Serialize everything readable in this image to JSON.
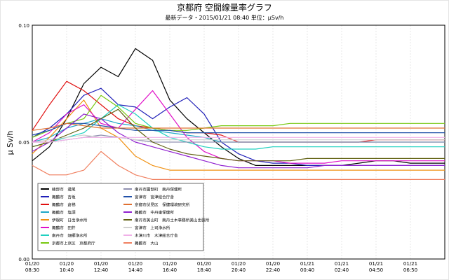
{
  "chart_data": {
    "type": "line",
    "title": "京都府 空間線量率グラフ",
    "subtitle": "最新データ・2015/01/21 08:40  単位：μSv/h",
    "ylabel": "μ Sv/h",
    "ylim": [
      0,
      0.1
    ],
    "yticks": [
      "0.00",
      "0.05",
      "0.10"
    ],
    "xticks": [
      {
        "date": "01/20",
        "time": "08:30"
      },
      {
        "date": "01/20",
        "time": "10:40"
      },
      {
        "date": "01/20",
        "time": "12:40"
      },
      {
        "date": "01/20",
        "time": "14:40"
      },
      {
        "date": "01/20",
        "time": "16:40"
      },
      {
        "date": "01/20",
        "time": "18:40"
      },
      {
        "date": "01/20",
        "time": "20:40"
      },
      {
        "date": "01/20",
        "time": "22:40"
      },
      {
        "date": "01/21",
        "time": "00:40"
      },
      {
        "date": "01/21",
        "time": "02:40"
      },
      {
        "date": "01/21",
        "time": "04:50"
      },
      {
        "date": "01/21",
        "time": "06:50"
      }
    ],
    "grid": true,
    "legend_position": "bottom-left",
    "series": [
      {
        "name": "綾部市　君尾",
        "color": "#000000",
        "values": [
          0.042,
          0.048,
          0.06,
          0.075,
          0.082,
          0.078,
          0.09,
          0.085,
          0.068,
          0.06,
          0.054,
          0.048,
          0.043,
          0.04,
          0.04,
          0.04,
          0.04,
          0.04,
          0.04,
          0.041,
          0.042,
          0.042,
          0.041,
          0.041,
          0.041
        ]
      },
      {
        "name": "舞鶴市　吉坂",
        "color": "#1f1fb8",
        "values": [
          0.052,
          0.056,
          0.062,
          0.07,
          0.073,
          0.066,
          0.065,
          0.06,
          0.065,
          0.069,
          0.062,
          0.05,
          0.045,
          0.042,
          0.041,
          0.041,
          0.04,
          0.04,
          0.04,
          0.04,
          0.04,
          0.04,
          0.04,
          0.04,
          0.04
        ]
      },
      {
        "name": "舞鶴市　倉梯",
        "color": "#e01010",
        "values": [
          0.055,
          0.066,
          0.076,
          0.072,
          0.066,
          0.06,
          0.057,
          0.056,
          0.055,
          0.054,
          0.054,
          0.053,
          0.05,
          0.05,
          0.05,
          0.05,
          0.05,
          0.05,
          0.05,
          0.05,
          0.051,
          0.051,
          0.051,
          0.051,
          0.051
        ]
      },
      {
        "name": "舞鶴市　塩須",
        "color": "#1fa8c8",
        "values": [
          0.05,
          0.052,
          0.056,
          0.058,
          0.06,
          0.058,
          0.057,
          0.055,
          0.054,
          0.053,
          0.052,
          0.05,
          0.05,
          0.05,
          0.05,
          0.05,
          0.05,
          0.05,
          0.05,
          0.05,
          0.05,
          0.05,
          0.05,
          0.05,
          0.05
        ]
      },
      {
        "name": "伊根町　日出浄水所",
        "color": "#f09010",
        "values": [
          0.045,
          0.052,
          0.06,
          0.068,
          0.056,
          0.052,
          0.044,
          0.04,
          0.038,
          0.038,
          0.038,
          0.038,
          0.038,
          0.038,
          0.038,
          0.038,
          0.038,
          0.038,
          0.038,
          0.038,
          0.038,
          0.038,
          0.038,
          0.038,
          0.038
        ]
      },
      {
        "name": "舞鶴市　田井",
        "color": "#e010c8",
        "values": [
          0.05,
          0.054,
          0.062,
          0.066,
          0.058,
          0.056,
          0.064,
          0.072,
          0.062,
          0.052,
          0.046,
          0.043,
          0.042,
          0.042,
          0.042,
          0.041,
          0.041,
          0.041,
          0.042,
          0.042,
          0.042,
          0.042,
          0.042,
          0.042,
          0.042
        ]
      },
      {
        "name": "南丹市　畑郷浄水所",
        "color": "#20d0c0",
        "values": [
          0.048,
          0.05,
          0.052,
          0.054,
          0.06,
          0.066,
          0.062,
          0.056,
          0.052,
          0.05,
          0.048,
          0.047,
          0.047,
          0.047,
          0.048,
          0.048,
          0.048,
          0.048,
          0.048,
          0.048,
          0.048,
          0.048,
          0.048,
          0.048,
          0.048
        ]
      },
      {
        "name": "京都市上京区　京都府庁",
        "color": "#78c810",
        "values": [
          0.052,
          0.055,
          0.058,
          0.06,
          0.07,
          0.065,
          0.058,
          0.056,
          0.055,
          0.055,
          0.056,
          0.057,
          0.057,
          0.057,
          0.057,
          0.058,
          0.058,
          0.058,
          0.058,
          0.058,
          0.058,
          0.058,
          0.058,
          0.058,
          0.058
        ]
      },
      {
        "name": "南丹市園部町　南丹保健所",
        "color": "#9090b0",
        "values": [
          0.05,
          0.05,
          0.051,
          0.052,
          0.053,
          0.052,
          0.051,
          0.05,
          0.05,
          0.05,
          0.05,
          0.05,
          0.05,
          0.05,
          0.05,
          0.05,
          0.05,
          0.05,
          0.05,
          0.05,
          0.05,
          0.05,
          0.05,
          0.05,
          0.05
        ]
      },
      {
        "name": "宮津市　宮津総合庁舎",
        "color": "#2050a8",
        "values": [
          0.053,
          0.055,
          0.058,
          0.058,
          0.057,
          0.056,
          0.055,
          0.055,
          0.055,
          0.054,
          0.054,
          0.054,
          0.054,
          0.054,
          0.054,
          0.054,
          0.054,
          0.054,
          0.054,
          0.054,
          0.054,
          0.054,
          0.054,
          0.054,
          0.054
        ]
      },
      {
        "name": "京都市伏見区　保健環境研究所",
        "color": "#e07030",
        "values": [
          0.055,
          0.056,
          0.058,
          0.057,
          0.056,
          0.056,
          0.056,
          0.056,
          0.056,
          0.056,
          0.056,
          0.056,
          0.056,
          0.056,
          0.056,
          0.056,
          0.056,
          0.056,
          0.056,
          0.056,
          0.056,
          0.056,
          0.056,
          0.056,
          0.056
        ]
      },
      {
        "name": "舞鶴市　中丹東保健所",
        "color": "#9020d0",
        "values": [
          0.046,
          0.05,
          0.056,
          0.062,
          0.06,
          0.054,
          0.05,
          0.048,
          0.046,
          0.044,
          0.042,
          0.04,
          0.039,
          0.039,
          0.039,
          0.039,
          0.039,
          0.04,
          0.04,
          0.04,
          0.04,
          0.04,
          0.04,
          0.04,
          0.04
        ]
      },
      {
        "name": "南丹市美山町　南丹土木事務所美山出張所",
        "color": "#606010",
        "values": [
          0.048,
          0.05,
          0.053,
          0.056,
          0.06,
          0.064,
          0.056,
          0.05,
          0.047,
          0.045,
          0.044,
          0.043,
          0.042,
          0.042,
          0.042,
          0.042,
          0.043,
          0.043,
          0.043,
          0.043,
          0.043,
          0.043,
          0.043,
          0.043,
          0.043
        ]
      },
      {
        "name": "宮津市　上司浄水所",
        "color": "#d0d0d0",
        "values": [
          0.05,
          0.051,
          0.052,
          0.053,
          0.052,
          0.052,
          0.051,
          0.051,
          0.051,
          0.051,
          0.051,
          0.051,
          0.051,
          0.051,
          0.051,
          0.051,
          0.051,
          0.051,
          0.051,
          0.051,
          0.051,
          0.051,
          0.051,
          0.051,
          0.051
        ]
      },
      {
        "name": "木津川市　木津総合庁舎",
        "color": "#f0b0e8",
        "values": [
          0.05,
          0.05,
          0.051,
          0.052,
          0.052,
          0.052,
          0.052,
          0.052,
          0.052,
          0.052,
          0.052,
          0.052,
          0.052,
          0.052,
          0.052,
          0.052,
          0.052,
          0.052,
          0.052,
          0.052,
          0.052,
          0.052,
          0.052,
          0.052,
          0.052
        ]
      },
      {
        "name": "舞鶴市　大山",
        "color": "#f08060",
        "values": [
          0.04,
          0.036,
          0.036,
          0.038,
          0.046,
          0.04,
          0.036,
          0.034,
          0.034,
          0.034,
          0.034,
          0.034,
          0.034,
          0.034,
          0.034,
          0.034,
          0.034,
          0.034,
          0.034,
          0.034,
          0.034,
          0.034,
          0.034,
          0.034,
          0.034
        ]
      }
    ]
  }
}
